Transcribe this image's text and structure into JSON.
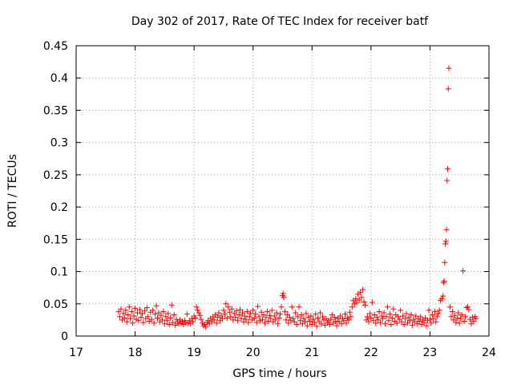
{
  "chart_data": {
    "type": "scatter",
    "title": "Day 302 of 2017, Rate Of TEC Index for receiver batf",
    "xlabel": "GPS time / hours",
    "ylabel": "ROTI / TECUs",
    "xlim": [
      17,
      24
    ],
    "ylim": [
      0,
      0.45
    ],
    "xticks": [
      "17",
      "18",
      "19",
      "20",
      "21",
      "22",
      "23",
      "24"
    ],
    "yticks": [
      "0",
      "0.05",
      "0.1",
      "0.15",
      "0.2",
      "0.25",
      "0.3",
      "0.35",
      "0.4",
      "0.45"
    ],
    "grid": true,
    "marker": "+",
    "series": [
      {
        "name": "ROTI",
        "color": "#ff0000",
        "points": [
          [
            17.72,
            0.038
          ],
          [
            17.74,
            0.03
          ],
          [
            17.76,
            0.042
          ],
          [
            17.78,
            0.025
          ],
          [
            17.8,
            0.035
          ],
          [
            17.82,
            0.028
          ],
          [
            17.84,
            0.04
          ],
          [
            17.86,
            0.022
          ],
          [
            17.88,
            0.033
          ],
          [
            17.9,
            0.045
          ],
          [
            17.92,
            0.027
          ],
          [
            17.94,
            0.038
          ],
          [
            17.96,
            0.02
          ],
          [
            17.98,
            0.031
          ],
          [
            18.0,
            0.043
          ],
          [
            18.02,
            0.026
          ],
          [
            18.04,
            0.036
          ],
          [
            18.06,
            0.024
          ],
          [
            18.08,
            0.041
          ],
          [
            18.1,
            0.029
          ],
          [
            18.12,
            0.035
          ],
          [
            18.14,
            0.021
          ],
          [
            18.16,
            0.039
          ],
          [
            18.18,
            0.027
          ],
          [
            18.2,
            0.044
          ],
          [
            18.22,
            0.03
          ],
          [
            18.24,
            0.023
          ],
          [
            18.26,
            0.037
          ],
          [
            18.28,
            0.026
          ],
          [
            18.3,
            0.04
          ],
          [
            18.32,
            0.02
          ],
          [
            18.34,
            0.034
          ],
          [
            18.36,
            0.047
          ],
          [
            18.38,
            0.028
          ],
          [
            18.4,
            0.036
          ],
          [
            18.42,
            0.022
          ],
          [
            18.44,
            0.032
          ],
          [
            18.46,
            0.025
          ],
          [
            18.48,
            0.038
          ],
          [
            18.5,
            0.019
          ],
          [
            18.52,
            0.03
          ],
          [
            18.54,
            0.024
          ],
          [
            18.56,
            0.035
          ],
          [
            18.58,
            0.018
          ],
          [
            18.6,
            0.028
          ],
          [
            18.62,
            0.048
          ],
          [
            18.64,
            0.021
          ],
          [
            18.66,
            0.033
          ],
          [
            18.68,
            0.017
          ],
          [
            18.7,
            0.026
          ],
          [
            18.72,
            0.022
          ],
          [
            18.74,
            0.019
          ],
          [
            18.76,
            0.025
          ],
          [
            18.78,
            0.02
          ],
          [
            18.8,
            0.023
          ],
          [
            18.82,
            0.018
          ],
          [
            18.84,
            0.024
          ],
          [
            18.86,
            0.021
          ],
          [
            18.88,
            0.034
          ],
          [
            18.9,
            0.02
          ],
          [
            18.92,
            0.024
          ],
          [
            18.94,
            0.019
          ],
          [
            18.96,
            0.027
          ],
          [
            18.98,
            0.022
          ],
          [
            19.0,
            0.031
          ],
          [
            19.02,
            0.028
          ],
          [
            19.04,
            0.045
          ],
          [
            19.06,
            0.04
          ],
          [
            19.08,
            0.036
          ],
          [
            19.1,
            0.032
          ],
          [
            19.12,
            0.026
          ],
          [
            19.14,
            0.02
          ],
          [
            19.16,
            0.016
          ],
          [
            19.18,
            0.018
          ],
          [
            19.2,
            0.014
          ],
          [
            19.22,
            0.021
          ],
          [
            19.24,
            0.024
          ],
          [
            19.26,
            0.019
          ],
          [
            19.28,
            0.027
          ],
          [
            19.3,
            0.022
          ],
          [
            19.32,
            0.03
          ],
          [
            19.34,
            0.025
          ],
          [
            19.36,
            0.033
          ],
          [
            19.38,
            0.02
          ],
          [
            19.4,
            0.029
          ],
          [
            19.42,
            0.036
          ],
          [
            19.44,
            0.024
          ],
          [
            19.46,
            0.031
          ],
          [
            19.48,
            0.027
          ],
          [
            19.5,
            0.04
          ],
          [
            19.52,
            0.034
          ],
          [
            19.54,
            0.05
          ],
          [
            19.56,
            0.028
          ],
          [
            19.58,
            0.045
          ],
          [
            19.6,
            0.037
          ],
          [
            19.62,
            0.03
          ],
          [
            19.64,
            0.042
          ],
          [
            19.66,
            0.025
          ],
          [
            19.68,
            0.035
          ],
          [
            19.7,
            0.029
          ],
          [
            19.72,
            0.039
          ],
          [
            19.74,
            0.024
          ],
          [
            19.76,
            0.033
          ],
          [
            19.78,
            0.041
          ],
          [
            19.8,
            0.027
          ],
          [
            19.82,
            0.036
          ],
          [
            19.84,
            0.022
          ],
          [
            19.86,
            0.031
          ],
          [
            19.88,
            0.026
          ],
          [
            19.9,
            0.038
          ],
          [
            19.92,
            0.021
          ],
          [
            19.94,
            0.03
          ],
          [
            19.96,
            0.035
          ],
          [
            19.98,
            0.025
          ],
          [
            20.0,
            0.04
          ],
          [
            20.02,
            0.028
          ],
          [
            20.04,
            0.034
          ],
          [
            20.06,
            0.021
          ],
          [
            20.08,
            0.046
          ],
          [
            20.1,
            0.03
          ],
          [
            20.12,
            0.024
          ],
          [
            20.14,
            0.037
          ],
          [
            20.16,
            0.026
          ],
          [
            20.18,
            0.033
          ],
          [
            20.2,
            0.02
          ],
          [
            20.22,
            0.029
          ],
          [
            20.24,
            0.038
          ],
          [
            20.26,
            0.023
          ],
          [
            20.28,
            0.032
          ],
          [
            20.3,
            0.027
          ],
          [
            20.32,
            0.04
          ],
          [
            20.34,
            0.022
          ],
          [
            20.36,
            0.031
          ],
          [
            20.38,
            0.025
          ],
          [
            20.4,
            0.036
          ],
          [
            20.42,
            0.019
          ],
          [
            20.44,
            0.028
          ],
          [
            20.46,
            0.034
          ],
          [
            20.48,
            0.045
          ],
          [
            20.5,
            0.063
          ],
          [
            20.51,
            0.066
          ],
          [
            20.52,
            0.06
          ],
          [
            20.54,
            0.038
          ],
          [
            20.56,
            0.025
          ],
          [
            20.58,
            0.033
          ],
          [
            20.6,
            0.02
          ],
          [
            20.62,
            0.029
          ],
          [
            20.64,
            0.024
          ],
          [
            20.66,
            0.045
          ],
          [
            20.68,
            0.027
          ],
          [
            20.7,
            0.022
          ],
          [
            20.72,
            0.036
          ],
          [
            20.74,
            0.018
          ],
          [
            20.76,
            0.03
          ],
          [
            20.78,
            0.045
          ],
          [
            20.8,
            0.024
          ],
          [
            20.82,
            0.033
          ],
          [
            20.84,
            0.019
          ],
          [
            20.86,
            0.027
          ],
          [
            20.88,
            0.022
          ],
          [
            20.9,
            0.035
          ],
          [
            20.92,
            0.016
          ],
          [
            20.94,
            0.029
          ],
          [
            20.96,
            0.023
          ],
          [
            20.98,
            0.031
          ],
          [
            21.0,
            0.018
          ],
          [
            21.02,
            0.026
          ],
          [
            21.04,
            0.021
          ],
          [
            21.06,
            0.034
          ],
          [
            21.08,
            0.015
          ],
          [
            21.1,
            0.028
          ],
          [
            21.12,
            0.022
          ],
          [
            21.14,
            0.036
          ],
          [
            21.16,
            0.019
          ],
          [
            21.18,
            0.03
          ],
          [
            21.2,
            0.025
          ],
          [
            21.22,
            0.017
          ],
          [
            21.24,
            0.027
          ],
          [
            21.26,
            0.021
          ],
          [
            21.28,
            0.024
          ],
          [
            21.3,
            0.018
          ],
          [
            21.32,
            0.026
          ],
          [
            21.34,
            0.033
          ],
          [
            21.36,
            0.02
          ],
          [
            21.38,
            0.029
          ],
          [
            21.4,
            0.023
          ],
          [
            21.42,
            0.016
          ],
          [
            21.44,
            0.028
          ],
          [
            21.46,
            0.022
          ],
          [
            21.48,
            0.031
          ],
          [
            21.5,
            0.019
          ],
          [
            21.52,
            0.027
          ],
          [
            21.54,
            0.024
          ],
          [
            21.56,
            0.034
          ],
          [
            21.58,
            0.02
          ],
          [
            21.6,
            0.028
          ],
          [
            21.62,
            0.025
          ],
          [
            21.64,
            0.037
          ],
          [
            21.66,
            0.03
          ],
          [
            21.68,
            0.045
          ],
          [
            21.7,
            0.055
          ],
          [
            21.72,
            0.05
          ],
          [
            21.74,
            0.058
          ],
          [
            21.76,
            0.052
          ],
          [
            21.78,
            0.065
          ],
          [
            21.8,
            0.056
          ],
          [
            21.82,
            0.068
          ],
          [
            21.84,
            0.06
          ],
          [
            21.86,
            0.072
          ],
          [
            21.88,
            0.053
          ],
          [
            21.9,
            0.048
          ],
          [
            21.92,
            0.025
          ],
          [
            21.94,
            0.03
          ],
          [
            21.96,
            0.022
          ],
          [
            21.98,
            0.035
          ],
          [
            22.0,
            0.028
          ],
          [
            22.02,
            0.052
          ],
          [
            22.04,
            0.024
          ],
          [
            22.06,
            0.033
          ],
          [
            22.08,
            0.02
          ],
          [
            22.1,
            0.029
          ],
          [
            22.12,
            0.025
          ],
          [
            22.14,
            0.038
          ],
          [
            22.16,
            0.021
          ],
          [
            22.18,
            0.031
          ],
          [
            22.2,
            0.027
          ],
          [
            22.22,
            0.036
          ],
          [
            22.24,
            0.019
          ],
          [
            22.26,
            0.03
          ],
          [
            22.28,
            0.045
          ],
          [
            22.3,
            0.024
          ],
          [
            22.32,
            0.034
          ],
          [
            22.34,
            0.018
          ],
          [
            22.36,
            0.028
          ],
          [
            22.38,
            0.042
          ],
          [
            22.4,
            0.023
          ],
          [
            22.42,
            0.033
          ],
          [
            22.44,
            0.02
          ],
          [
            22.46,
            0.03
          ],
          [
            22.48,
            0.026
          ],
          [
            22.5,
            0.04
          ],
          [
            22.52,
            0.022
          ],
          [
            22.54,
            0.031
          ],
          [
            22.56,
            0.018
          ],
          [
            22.58,
            0.027
          ],
          [
            22.6,
            0.035
          ],
          [
            22.62,
            0.021
          ],
          [
            22.64,
            0.029
          ],
          [
            22.66,
            0.024
          ],
          [
            22.68,
            0.033
          ],
          [
            22.7,
            0.017
          ],
          [
            22.72,
            0.026
          ],
          [
            22.74,
            0.022
          ],
          [
            22.76,
            0.031
          ],
          [
            22.78,
            0.019
          ],
          [
            22.8,
            0.027
          ],
          [
            22.82,
            0.023
          ],
          [
            22.84,
            0.03
          ],
          [
            22.86,
            0.018
          ],
          [
            22.88,
            0.025
          ],
          [
            22.9,
            0.021
          ],
          [
            22.92,
            0.028
          ],
          [
            22.94,
            0.016
          ],
          [
            22.96,
            0.024
          ],
          [
            22.98,
            0.04
          ],
          [
            23.0,
            0.026
          ],
          [
            23.02,
            0.02
          ],
          [
            23.04,
            0.033
          ],
          [
            23.06,
            0.027
          ],
          [
            23.08,
            0.038
          ],
          [
            23.1,
            0.022
          ],
          [
            23.12,
            0.03
          ],
          [
            23.14,
            0.035
          ],
          [
            23.16,
            0.04
          ],
          [
            23.18,
            0.055
          ],
          [
            23.2,
            0.058
          ],
          [
            23.22,
            0.062
          ],
          [
            23.23,
            0.083
          ],
          [
            23.24,
            0.085
          ],
          [
            23.25,
            0.114
          ],
          [
            23.26,
            0.143
          ],
          [
            23.27,
            0.147
          ],
          [
            23.28,
            0.165
          ],
          [
            23.29,
            0.241
          ],
          [
            23.3,
            0.259
          ],
          [
            23.31,
            0.383
          ],
          [
            23.32,
            0.415
          ],
          [
            23.34,
            0.045
          ],
          [
            23.36,
            0.03
          ],
          [
            23.38,
            0.038
          ],
          [
            23.4,
            0.025
          ],
          [
            23.42,
            0.032
          ],
          [
            23.44,
            0.021
          ],
          [
            23.46,
            0.028
          ],
          [
            23.48,
            0.036
          ],
          [
            23.5,
            0.02
          ],
          [
            23.52,
            0.027
          ],
          [
            23.54,
            0.033
          ],
          [
            23.56,
            0.101
          ],
          [
            23.58,
            0.023
          ],
          [
            23.6,
            0.03
          ],
          [
            23.62,
            0.044
          ],
          [
            23.64,
            0.045
          ],
          [
            23.66,
            0.041
          ],
          [
            23.68,
            0.026
          ],
          [
            23.7,
            0.019
          ],
          [
            23.72,
            0.029
          ],
          [
            23.74,
            0.023
          ],
          [
            23.76,
            0.03
          ],
          [
            23.78,
            0.027
          ]
        ]
      }
    ]
  }
}
